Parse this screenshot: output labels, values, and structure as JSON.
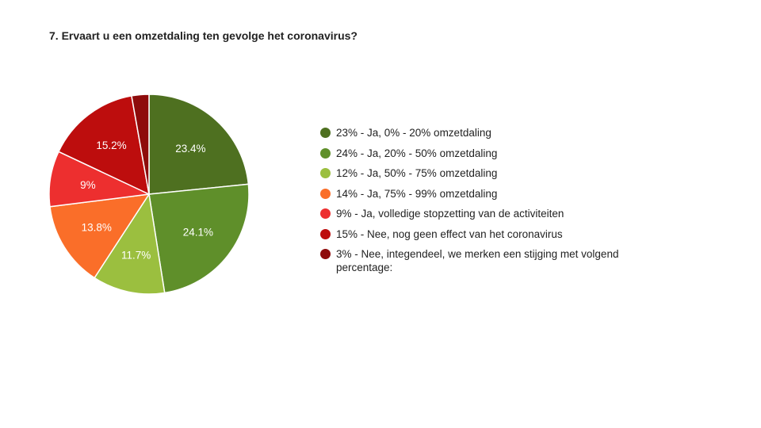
{
  "chart_data": {
    "type": "pie",
    "title": "7. Ervaart u een omzetdaling ten gevolge het coronavirus?",
    "slices": [
      {
        "value": 23.4,
        "label": "23.4%",
        "legend": "23% - Ja, 0% - 20% omzetdaling",
        "color": "#4e7020"
      },
      {
        "value": 24.1,
        "label": "24.1%",
        "legend": "24% - Ja, 20% - 50% omzetdaling",
        "color": "#5f8f2a"
      },
      {
        "value": 11.7,
        "label": "11.7%",
        "legend": "12% - Ja, 50% - 75% omzetdaling",
        "color": "#9bbf3f"
      },
      {
        "value": 13.8,
        "label": "13.8%",
        "legend": "14% - Ja, 75% - 99% omzetdaling",
        "color": "#fa6e29"
      },
      {
        "value": 9.0,
        "label": "9%",
        "legend": "9% - Ja, volledige stopzetting van de activiteiten",
        "color": "#ed2f2f"
      },
      {
        "value": 15.2,
        "label": "15.2%",
        "legend": "15% - Nee, nog geen effect van het coronavirus",
        "color": "#bd0d0d"
      },
      {
        "value": 2.8,
        "label": "",
        "legend": "3% - Nee, integendeel, we merken een stijging met volgend percentage:",
        "color": "#8e0b0b"
      }
    ],
    "legend_position": "right"
  }
}
